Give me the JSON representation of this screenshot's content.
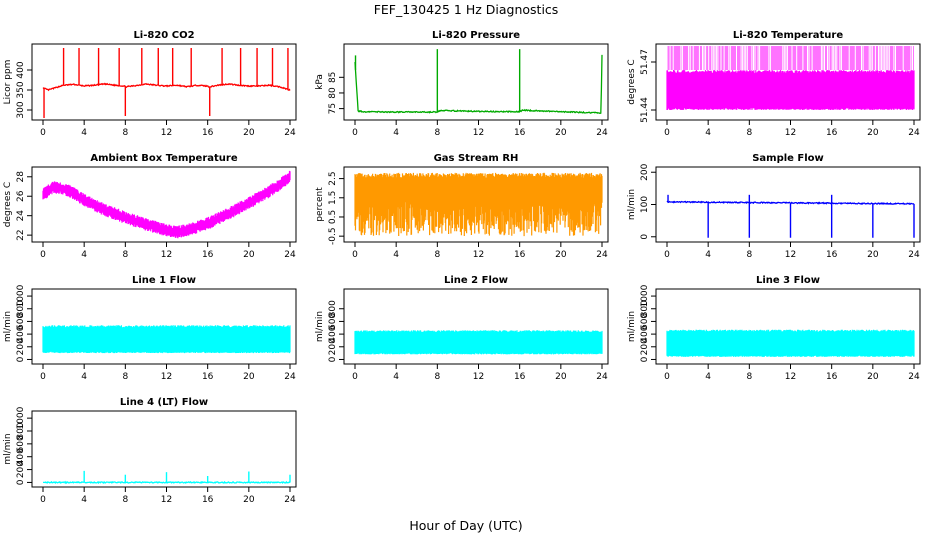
{
  "figure": {
    "title": "FEF_130425  1 Hz Diagnostics",
    "xlabel": "Hour of Day (UTC)"
  },
  "chart_data": [
    {
      "type": "line",
      "title": "Li-820 CO2",
      "ylabel": "Licor ppm",
      "color": "#ff0000",
      "xlim": [
        0,
        24
      ],
      "ylim": [
        280,
        460
      ],
      "xticks": [
        0,
        4,
        8,
        12,
        16,
        20,
        24
      ],
      "yticks": [
        300,
        350,
        400
      ],
      "x": [
        0,
        0.5,
        1.5,
        2,
        3,
        4,
        5,
        6,
        7,
        7.8,
        8.1,
        9,
        10,
        11,
        12,
        13,
        14,
        15,
        15.9,
        16.2,
        17,
        18,
        19,
        20,
        21,
        22,
        23,
        24
      ],
      "values": [
        355,
        350,
        358,
        362,
        364,
        360,
        362,
        365,
        362,
        360,
        358,
        361,
        365,
        362,
        360,
        362,
        358,
        362,
        360,
        358,
        362,
        365,
        362,
        360,
        360,
        362,
        358,
        350
      ],
      "spikes": [
        [
          0.1,
          280
        ],
        [
          2,
          455
        ],
        [
          3.5,
          455
        ],
        [
          5.4,
          455
        ],
        [
          7.4,
          455
        ],
        [
          8,
          285
        ],
        [
          9.6,
          455
        ],
        [
          11.2,
          455
        ],
        [
          12.6,
          455
        ],
        [
          14.4,
          455
        ],
        [
          16.2,
          285
        ],
        [
          17.4,
          455
        ],
        [
          19.2,
          455
        ],
        [
          20.8,
          455
        ],
        [
          22.3,
          455
        ],
        [
          23.8,
          455
        ]
      ]
    },
    {
      "type": "line",
      "title": "Li-820 Pressure",
      "ylabel": "kPa",
      "color": "#00aa00",
      "xlim": [
        0,
        24
      ],
      "ylim": [
        72,
        95
      ],
      "xticks": [
        0,
        4,
        8,
        12,
        16,
        20,
        24
      ],
      "yticks": [
        75,
        80,
        85
      ],
      "x": [
        0,
        0.3,
        1,
        4,
        8,
        8.3,
        12,
        16,
        16.3,
        20,
        23.9,
        24
      ],
      "values": [
        90,
        74.2,
        74,
        73.9,
        73.9,
        74.4,
        74.1,
        74,
        74.5,
        74,
        73.6,
        92
      ],
      "spikes": [
        [
          0.05,
          92
        ],
        [
          8,
          94
        ],
        [
          16,
          94
        ],
        [
          24,
          92
        ]
      ]
    },
    {
      "type": "area",
      "title": "Li-820 Temperature",
      "ylabel": "degrees C",
      "color": "#ff00ff",
      "xlim": [
        0,
        24
      ],
      "ylim": [
        51.435,
        51.48
      ],
      "xticks": [
        0,
        4,
        8,
        12,
        16,
        20,
        24
      ],
      "yticks": [
        51.44,
        51.47
      ],
      "band": [
        51.44,
        51.465
      ],
      "max": 51.48
    },
    {
      "type": "area",
      "title": "Ambient Box Temperature",
      "ylabel": "degrees C",
      "color": "#ff00ff",
      "xlim": [
        0,
        24
      ],
      "ylim": [
        21.5,
        28.8
      ],
      "xticks": [
        0,
        4,
        8,
        12,
        16,
        20,
        24
      ],
      "yticks": [
        22,
        24,
        26,
        28
      ],
      "x": [
        0,
        1,
        2,
        3,
        4,
        6,
        8,
        10,
        12,
        13,
        14,
        16,
        18,
        20,
        22,
        23,
        24
      ],
      "values": [
        26.2,
        26.9,
        26.8,
        26.3,
        25.6,
        24.6,
        23.8,
        23.1,
        22.5,
        22.3,
        22.5,
        23.2,
        24.2,
        25.3,
        26.5,
        27.2,
        28
      ]
    },
    {
      "type": "area",
      "title": "Gas Stream RH",
      "ylabel": "percent",
      "color": "#ff9900",
      "xlim": [
        0,
        24
      ],
      "ylim": [
        -0.7,
        3.0
      ],
      "xticks": [
        0,
        4,
        8,
        12,
        16,
        20,
        24
      ],
      "yticks": [
        -0.5,
        0.5,
        1.5,
        2.5
      ],
      "band": [
        -0.5,
        2.8
      ]
    },
    {
      "type": "line",
      "title": "Sample Flow",
      "ylabel": "ml/min",
      "color": "#0000ff",
      "xlim": [
        0,
        24
      ],
      "ylim": [
        -10,
        210
      ],
      "xticks": [
        0,
        4,
        8,
        12,
        16,
        20,
        24
      ],
      "yticks": [
        0,
        100,
        200
      ],
      "x": [
        0,
        24
      ],
      "values": [
        108,
        102
      ],
      "spikes": [
        [
          0.1,
          130
        ],
        [
          4,
          -3
        ],
        [
          8,
          -3
        ],
        [
          8,
          130
        ],
        [
          12,
          -3
        ],
        [
          16,
          -3
        ],
        [
          16,
          130
        ],
        [
          20,
          -3
        ],
        [
          24,
          -3
        ]
      ]
    },
    {
      "type": "area",
      "title": "Line 1 Flow",
      "ylabel": "ml/min",
      "color": "#00ffff",
      "xlim": [
        0,
        24
      ],
      "ylim": [
        -40,
        1080
      ],
      "xticks": [
        0,
        4,
        8,
        12,
        16,
        20,
        24
      ],
      "yticks": [
        0,
        200,
        400,
        600,
        800,
        1000
      ],
      "band": [
        100,
        540
      ]
    },
    {
      "type": "area",
      "title": "Line 2 Flow",
      "ylabel": "ml/min",
      "color": "#00ffff",
      "xlim": [
        0,
        24
      ],
      "ylim": [
        -40,
        1080
      ],
      "xticks": [
        0,
        4,
        8,
        12,
        16,
        20,
        24
      ],
      "yticks": [
        0,
        200,
        400,
        600,
        800
      ],
      "band": [
        80,
        460
      ]
    },
    {
      "type": "area",
      "title": "Line 3 Flow",
      "ylabel": "ml/min",
      "color": "#00ffff",
      "xlim": [
        0,
        24
      ],
      "ylim": [
        -40,
        1080
      ],
      "xticks": [
        0,
        4,
        8,
        12,
        16,
        20,
        24
      ],
      "yticks": [
        0,
        200,
        400,
        600,
        800,
        1000
      ],
      "band": [
        40,
        470
      ]
    },
    {
      "type": "line",
      "title": "Line 4 (LT) Flow",
      "ylabel": "ml/min",
      "color": "#00ffff",
      "xlim": [
        0,
        24
      ],
      "ylim": [
        -40,
        1080
      ],
      "xticks": [
        0,
        4,
        8,
        12,
        16,
        20,
        24
      ],
      "yticks": [
        0,
        200,
        400,
        600,
        800,
        1000
      ],
      "x": [
        0,
        24
      ],
      "values": [
        0,
        0
      ],
      "spikes": [
        [
          4,
          180
        ],
        [
          8,
          120
        ],
        [
          12,
          160
        ],
        [
          16,
          100
        ],
        [
          20,
          170
        ],
        [
          24,
          120
        ]
      ]
    }
  ]
}
